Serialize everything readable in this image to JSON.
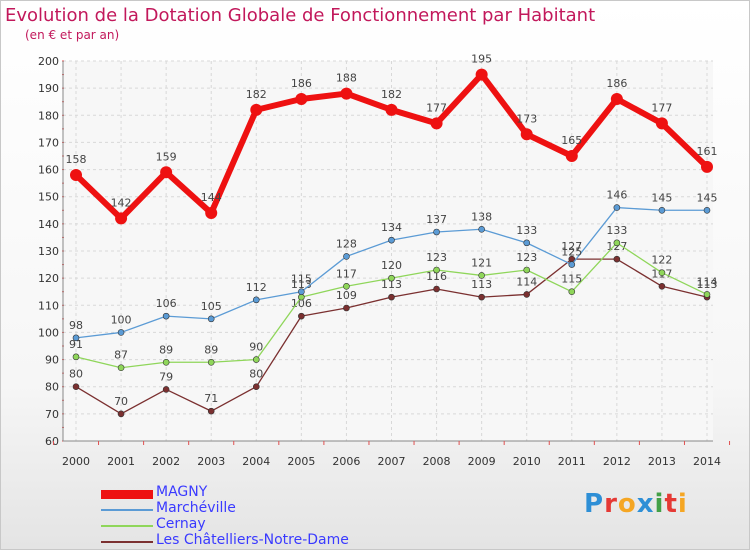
{
  "title": "Evolution de la Dotation Globale de Fonctionnement par Habitant",
  "subtitle": "(en € et par an)",
  "brand": {
    "text": "Proxiti",
    "colors": [
      "#2e8fd6",
      "#e53935",
      "#f5a623",
      "#2e8fd6",
      "#43a047",
      "#e53935",
      "#f5a623"
    ]
  },
  "chart_data": {
    "type": "line",
    "x": [
      2000,
      2001,
      2002,
      2003,
      2004,
      2005,
      2006,
      2007,
      2008,
      2009,
      2010,
      2011,
      2012,
      2013,
      2014
    ],
    "ylim": [
      60,
      200
    ],
    "yticks": [
      60,
      70,
      80,
      90,
      100,
      110,
      120,
      130,
      140,
      150,
      160,
      170,
      180,
      190,
      200
    ],
    "grid": true,
    "legend_position": "bottom-left",
    "series": [
      {
        "name": "MAGNY",
        "color": "#ee1111",
        "values": [
          158,
          142,
          159,
          144,
          182,
          186,
          188,
          182,
          177,
          195,
          173,
          165,
          186,
          177,
          161
        ],
        "labels": [
          "158",
          "142",
          "159",
          "144",
          "182",
          "186",
          "188",
          "182",
          "177",
          "195",
          "173",
          "165",
          "186",
          "177",
          "161"
        ]
      },
      {
        "name": "Marchéville",
        "color": "#5b9bd5",
        "values": [
          98,
          100,
          106,
          105,
          112,
          115,
          128,
          134,
          137,
          138,
          133,
          125,
          146,
          145,
          145
        ],
        "labels": [
          "98",
          "100",
          "106",
          "105",
          "112",
          "115",
          "128",
          "134",
          "137",
          "138",
          "133",
          "125",
          "146",
          "145",
          "145"
        ]
      },
      {
        "name": "Cernay",
        "color": "#8fd65a",
        "values": [
          91,
          87,
          89,
          89,
          90,
          113,
          117,
          120,
          123,
          121,
          123,
          115,
          133,
          122,
          114
        ],
        "labels": [
          "91",
          "87",
          "89",
          "89",
          "90",
          "113",
          "117",
          "120",
          "123",
          "121",
          "123",
          "115",
          "133",
          "122",
          "114"
        ]
      },
      {
        "name": "Les Châtelliers-Notre-Dame",
        "color": "#7b3030",
        "values": [
          80,
          70,
          79,
          71,
          80,
          106,
          109,
          113,
          116,
          113,
          114,
          127,
          127,
          117,
          113
        ],
        "labels": [
          "80",
          "70",
          "79",
          "71",
          "80",
          "106",
          "109",
          "113",
          "116",
          "113",
          "114",
          "127",
          "127",
          "117",
          "113"
        ]
      }
    ]
  }
}
